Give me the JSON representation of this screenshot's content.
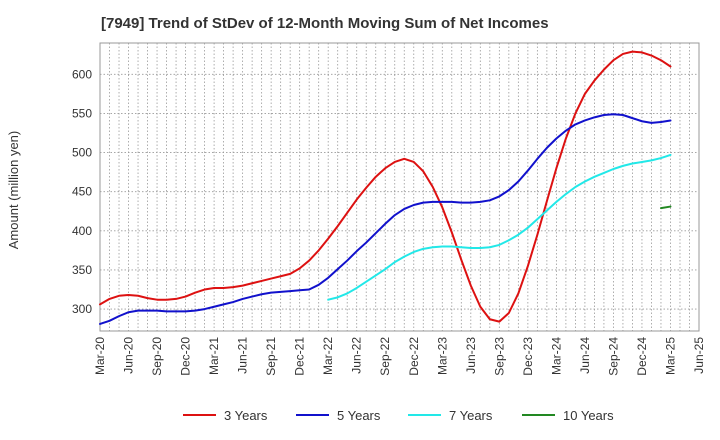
{
  "chart_data": {
    "type": "line",
    "title": "[7949]  Trend of StDev of 12-Month Moving Sum of Net Incomes",
    "ylabel": "Amount (million yen)",
    "xlabel": "",
    "x_ticks": [
      "Mar-20",
      "Jun-20",
      "Sep-20",
      "Dec-20",
      "Mar-21",
      "Jun-21",
      "Sep-21",
      "Dec-21",
      "Mar-22",
      "Jun-22",
      "Sep-22",
      "Dec-22",
      "Mar-23",
      "Jun-23",
      "Sep-23",
      "Dec-23",
      "Mar-24",
      "Jun-24",
      "Sep-24",
      "Dec-24",
      "Mar-25",
      "Jun-25"
    ],
    "y_ticks": [
      300,
      350,
      400,
      450,
      500,
      550,
      600
    ],
    "ylim": [
      272,
      640
    ],
    "grid": true,
    "legend_position": "bottom",
    "x": [
      "2020-03",
      "2020-04",
      "2020-05",
      "2020-06",
      "2020-07",
      "2020-08",
      "2020-09",
      "2020-10",
      "2020-11",
      "2020-12",
      "2021-01",
      "2021-02",
      "2021-03",
      "2021-04",
      "2021-05",
      "2021-06",
      "2021-07",
      "2021-08",
      "2021-09",
      "2021-10",
      "2021-11",
      "2021-12",
      "2022-01",
      "2022-02",
      "2022-03",
      "2022-04",
      "2022-05",
      "2022-06",
      "2022-07",
      "2022-08",
      "2022-09",
      "2022-10",
      "2022-11",
      "2022-12",
      "2023-01",
      "2023-02",
      "2023-03",
      "2023-04",
      "2023-05",
      "2023-06",
      "2023-07",
      "2023-08",
      "2023-09",
      "2023-10",
      "2023-11",
      "2023-12",
      "2024-01",
      "2024-02",
      "2024-03",
      "2024-04",
      "2024-05",
      "2024-06",
      "2024-07",
      "2024-08",
      "2024-09",
      "2024-10",
      "2024-11",
      "2024-12",
      "2025-01",
      "2025-02",
      "2025-03"
    ],
    "series": [
      {
        "name": "3 Years",
        "color": "#dd1111",
        "values": [
          306,
          313,
          317,
          318,
          317,
          314,
          312,
          312,
          313,
          316,
          321,
          325,
          327,
          327,
          328,
          330,
          333,
          336,
          339,
          342,
          345,
          352,
          362,
          375,
          390,
          406,
          423,
          440,
          455,
          469,
          480,
          488,
          492,
          488,
          476,
          456,
          430,
          398,
          363,
          330,
          303,
          287,
          284,
          295,
          320,
          355,
          395,
          438,
          480,
          518,
          550,
          575,
          592,
          606,
          618,
          626,
          629,
          628,
          624,
          618,
          610
        ]
      },
      {
        "name": "5 Years",
        "color": "#1111cc",
        "values": [
          281,
          285,
          291,
          296,
          298,
          298,
          298,
          297,
          297,
          297,
          298,
          300,
          303,
          306,
          309,
          313,
          316,
          319,
          321,
          322,
          323,
          324,
          325,
          331,
          340,
          351,
          362,
          374,
          385,
          397,
          409,
          420,
          428,
          433,
          436,
          437,
          437,
          437,
          436,
          436,
          437,
          439,
          444,
          452,
          463,
          477,
          492,
          506,
          518,
          528,
          536,
          541,
          545,
          548,
          549,
          548,
          544,
          540,
          538,
          539,
          541
        ]
      },
      {
        "name": "7 Years",
        "color": "#22e8e8",
        "values": [
          null,
          null,
          null,
          null,
          null,
          null,
          null,
          null,
          null,
          null,
          null,
          null,
          null,
          null,
          null,
          null,
          null,
          null,
          null,
          null,
          null,
          null,
          null,
          null,
          312,
          315,
          320,
          327,
          335,
          343,
          351,
          360,
          367,
          373,
          377,
          379,
          380,
          380,
          379,
          378,
          378,
          379,
          382,
          388,
          395,
          404,
          415,
          426,
          437,
          447,
          456,
          463,
          469,
          474,
          479,
          483,
          486,
          488,
          490,
          493,
          497
        ]
      },
      {
        "name": "10 Years",
        "color": "#228822",
        "values": [
          null,
          null,
          null,
          null,
          null,
          null,
          null,
          null,
          null,
          null,
          null,
          null,
          null,
          null,
          null,
          null,
          null,
          null,
          null,
          null,
          null,
          null,
          null,
          null,
          null,
          null,
          null,
          null,
          null,
          null,
          null,
          null,
          null,
          null,
          null,
          null,
          null,
          null,
          null,
          null,
          null,
          null,
          null,
          null,
          null,
          null,
          null,
          null,
          null,
          null,
          null,
          null,
          null,
          null,
          null,
          null,
          null,
          null,
          null,
          429,
          431
        ]
      }
    ]
  }
}
